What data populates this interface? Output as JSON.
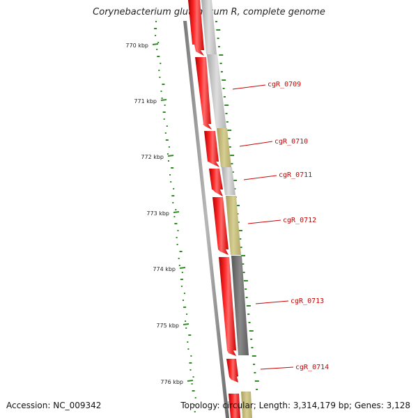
{
  "title": "Corynebacterium glutamicum R, complete genome",
  "accession_text": "Accession: NC_009342",
  "topology_text": "Topology: circular; Length: 3,314,179 bp; Genes: 3,128",
  "colors": {
    "forward_gene": "#ff0000",
    "reverse_gene_light": "#c8c8c8",
    "reverse_gene_olive": "#c8c07a",
    "reverse_gene_dark": "#6e6e6e",
    "tick": "#2e8b22",
    "backbone": "#888888",
    "label": "#cc0000"
  },
  "kbp_ticks": [
    {
      "label": "770 kbp"
    },
    {
      "label": "771 kbp"
    },
    {
      "label": "772 kbp"
    },
    {
      "label": "773 kbp"
    },
    {
      "label": "774 kbp"
    },
    {
      "label": "775 kbp"
    },
    {
      "label": "776 kbp"
    }
  ],
  "genes": [
    {
      "name": "cgR_0709"
    },
    {
      "name": "cgR_0710"
    },
    {
      "name": "cgR_0711"
    },
    {
      "name": "cgR_0712"
    },
    {
      "name": "cgR_0713"
    },
    {
      "name": "cgR_0714"
    }
  ]
}
